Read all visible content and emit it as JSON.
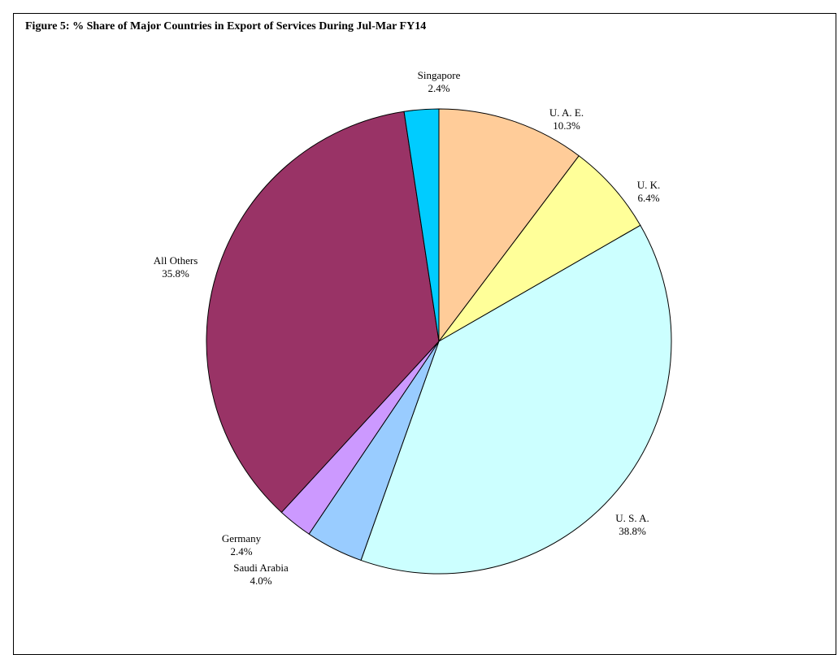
{
  "chart_data": {
    "type": "pie",
    "title": "Figure 5: % Share of Major Countries in Export of Services During Jul-Mar FY14",
    "start_angle_deg": 0,
    "direction": "clockwise",
    "slices": [
      {
        "label": "U. A. E.",
        "value": 10.3,
        "value_label": "10.3%",
        "color": "#FFCC99"
      },
      {
        "label": "U. K.",
        "value": 6.4,
        "value_label": "6.4%",
        "color": "#FFFF99"
      },
      {
        "label": "U. S. A.",
        "value": 38.8,
        "value_label": "38.8%",
        "color": "#CCFFFF"
      },
      {
        "label": "Saudi Arabia",
        "value": 4.0,
        "value_label": "4.0%",
        "color": "#99CCFF"
      },
      {
        "label": "Germany",
        "value": 2.4,
        "value_label": "2.4%",
        "color": "#CC99FF"
      },
      {
        "label": "All Others",
        "value": 35.8,
        "value_label": "35.8%",
        "color": "#993366"
      },
      {
        "label": "Singapore",
        "value": 2.4,
        "value_label": "2.4%",
        "color": "#00CCFF"
      }
    ]
  }
}
